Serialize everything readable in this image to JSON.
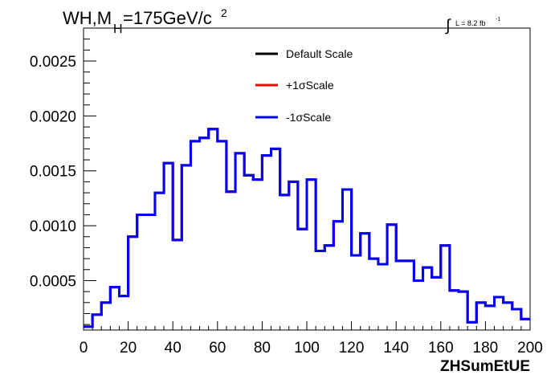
{
  "chart_data": {
    "type": "step",
    "title_parts": {
      "main": "WH,M",
      "subscript": "H",
      "rest": "=175GeV/c",
      "superscript": "2"
    },
    "lumi_label": {
      "integral": "∫",
      "text": "L = 8.2 fb",
      "superscript": "-1"
    },
    "xlabel": "ZHSumEtUE",
    "ylabel": "",
    "xlim": [
      0,
      200
    ],
    "ylim": [
      5e-05,
      0.0028
    ],
    "x_ticks": [
      {
        "value": 0,
        "label": "0"
      },
      {
        "value": 20,
        "label": "20"
      },
      {
        "value": 40,
        "label": "40"
      },
      {
        "value": 60,
        "label": "60"
      },
      {
        "value": 80,
        "label": "80"
      },
      {
        "value": 100,
        "label": "100"
      },
      {
        "value": 120,
        "label": "120"
      },
      {
        "value": 140,
        "label": "140"
      },
      {
        "value": 160,
        "label": "160"
      },
      {
        "value": 180,
        "label": "180"
      },
      {
        "value": 200,
        "label": "200"
      }
    ],
    "y_ticks": [
      {
        "value": 0.0005,
        "label": "0.0005"
      },
      {
        "value": 0.001,
        "label": "0.0010"
      },
      {
        "value": 0.0015,
        "label": "0.0015"
      },
      {
        "value": 0.002,
        "label": "0.0020"
      },
      {
        "value": 0.0025,
        "label": "0.0025"
      }
    ],
    "bin_width": 4,
    "legend_position": "top-center",
    "series": [
      {
        "name": "Default Scale",
        "color": "#000000",
        "values": [
          8e-05,
          0.00019,
          0.0003,
          0.00044,
          0.00036,
          0.0009,
          0.0011,
          0.0011,
          0.0013,
          0.00157,
          0.00087,
          0.00155,
          0.00177,
          0.0018,
          0.00188,
          0.00177,
          0.00131,
          0.00166,
          0.00146,
          0.00142,
          0.00164,
          0.0017,
          0.00128,
          0.0014,
          0.00097,
          0.00142,
          0.00077,
          0.00082,
          0.00104,
          0.00133,
          0.00073,
          0.00093,
          0.0007,
          0.00065,
          0.00101,
          0.00068,
          0.00068,
          0.0005,
          0.00062,
          0.00053,
          0.00082,
          0.00041,
          0.0004,
          0.00012,
          0.0003,
          0.00027,
          0.00035,
          0.0003,
          0.00024,
          0.00015
        ]
      },
      {
        "name": "+1σScale",
        "color": "#ff0000",
        "values": [
          8e-05,
          0.00019,
          0.0003,
          0.00044,
          0.00036,
          0.0009,
          0.0011,
          0.0011,
          0.0013,
          0.00157,
          0.00087,
          0.00155,
          0.00177,
          0.0018,
          0.00188,
          0.00177,
          0.00131,
          0.00166,
          0.00146,
          0.00142,
          0.00164,
          0.0017,
          0.00128,
          0.0014,
          0.00097,
          0.00142,
          0.00077,
          0.00082,
          0.00104,
          0.00133,
          0.00073,
          0.00093,
          0.0007,
          0.00065,
          0.00101,
          0.00068,
          0.00068,
          0.0005,
          0.00062,
          0.00053,
          0.00082,
          0.00041,
          0.0004,
          0.00012,
          0.0003,
          0.00027,
          0.00035,
          0.0003,
          0.00024,
          0.00015
        ]
      },
      {
        "name": "-1σScale",
        "color": "#0000ff",
        "values": [
          8e-05,
          0.00019,
          0.0003,
          0.00044,
          0.00036,
          0.0009,
          0.0011,
          0.0011,
          0.0013,
          0.00157,
          0.00087,
          0.00155,
          0.00177,
          0.0018,
          0.00188,
          0.00177,
          0.00131,
          0.00166,
          0.00146,
          0.00142,
          0.00164,
          0.0017,
          0.00128,
          0.0014,
          0.00097,
          0.00142,
          0.00077,
          0.00082,
          0.00104,
          0.00133,
          0.00073,
          0.00093,
          0.0007,
          0.00065,
          0.00101,
          0.00068,
          0.00068,
          0.0005,
          0.00062,
          0.00053,
          0.00082,
          0.00041,
          0.0004,
          0.00012,
          0.0003,
          0.00027,
          0.00035,
          0.0003,
          0.00024,
          0.00015
        ]
      }
    ]
  }
}
